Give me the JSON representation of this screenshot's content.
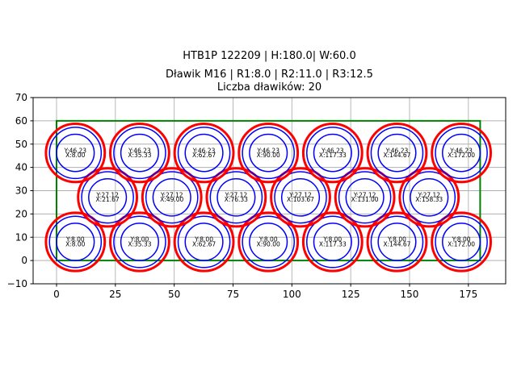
{
  "figure": {
    "suptitle": "HTB1P 122209 | H:180.0| W:60.0",
    "title_line1": "Dławik M16 | R1:8.0 | R2:11.0 | R3:12.5",
    "title_line2": "Liczba dławików: 20"
  },
  "chart_data": {
    "type": "scatter",
    "title": "HTB1P 122209 | H:180.0| W:60.0",
    "subtitle_line1": "Dławik M16 | R1:8.0 | R2:11.0 | R3:12.5",
    "subtitle_line2": "Liczba dławików: 20",
    "xlabel": "",
    "ylabel": "",
    "xlim": [
      -9.95,
      190.85
    ],
    "ylim": [
      -10,
      70
    ],
    "xticks": [
      0,
      25,
      50,
      75,
      100,
      125,
      150,
      175
    ],
    "yticks": [
      -10,
      0,
      10,
      20,
      30,
      40,
      50,
      60,
      70
    ],
    "grid": true,
    "legend": false,
    "panel_rect": {
      "x": 0,
      "y": 0,
      "width": 180,
      "height": 60
    },
    "gland_radii": {
      "r1": 8.0,
      "r2": 11.0,
      "r3": 12.5
    },
    "gland_count": 20,
    "colors": {
      "outer_ring": "#ff0000",
      "mid_ring": "#0000ff",
      "inner_ring": "#0000ff",
      "panel_rect": "#008000",
      "grid": "#b0b0b0",
      "spine": "#000000",
      "text": "#000000",
      "background": "#ffffff"
    },
    "glands": [
      {
        "x": 8.0,
        "y": 8.0,
        "label_y": "Y:8.00",
        "label_x": "X:8.00"
      },
      {
        "x": 35.33,
        "y": 8.0,
        "label_y": "Y:8.00",
        "label_x": "X:35.33"
      },
      {
        "x": 62.67,
        "y": 8.0,
        "label_y": "Y:8.00",
        "label_x": "X:62.67"
      },
      {
        "x": 90.0,
        "y": 8.0,
        "label_y": "Y:8.00",
        "label_x": "X:90.00"
      },
      {
        "x": 117.33,
        "y": 8.0,
        "label_y": "Y:8.00",
        "label_x": "X:117.33"
      },
      {
        "x": 144.67,
        "y": 8.0,
        "label_y": "Y:8.00",
        "label_x": "X:144.67"
      },
      {
        "x": 172.0,
        "y": 8.0,
        "label_y": "Y:8.00",
        "label_x": "X:172.00"
      },
      {
        "x": 21.67,
        "y": 27.12,
        "label_y": "Y:27.12",
        "label_x": "X:21.67"
      },
      {
        "x": 49.0,
        "y": 27.12,
        "label_y": "Y:27.12",
        "label_x": "X:49.00"
      },
      {
        "x": 76.33,
        "y": 27.12,
        "label_y": "Y:27.12",
        "label_x": "X:76.33"
      },
      {
        "x": 103.67,
        "y": 27.12,
        "label_y": "Y:27.12",
        "label_x": "X:103.67"
      },
      {
        "x": 131.0,
        "y": 27.12,
        "label_y": "Y:27.12",
        "label_x": "X:131.00"
      },
      {
        "x": 158.33,
        "y": 27.12,
        "label_y": "Y:27.12",
        "label_x": "X:158.33"
      },
      {
        "x": 8.0,
        "y": 46.23,
        "label_y": "Y:46.23",
        "label_x": "X:8.00"
      },
      {
        "x": 35.33,
        "y": 46.23,
        "label_y": "Y:46.23",
        "label_x": "X:35.33"
      },
      {
        "x": 62.67,
        "y": 46.23,
        "label_y": "Y:46.23",
        "label_x": "X:62.67"
      },
      {
        "x": 90.0,
        "y": 46.23,
        "label_y": "Y:46.23",
        "label_x": "X:90.00"
      },
      {
        "x": 117.33,
        "y": 46.23,
        "label_y": "Y:46.23",
        "label_x": "X:117.33"
      },
      {
        "x": 144.67,
        "y": 46.23,
        "label_y": "Y:46.23",
        "label_x": "X:144.67"
      },
      {
        "x": 172.0,
        "y": 46.23,
        "label_y": "Y:46.23",
        "label_x": "X:172.00"
      }
    ]
  }
}
